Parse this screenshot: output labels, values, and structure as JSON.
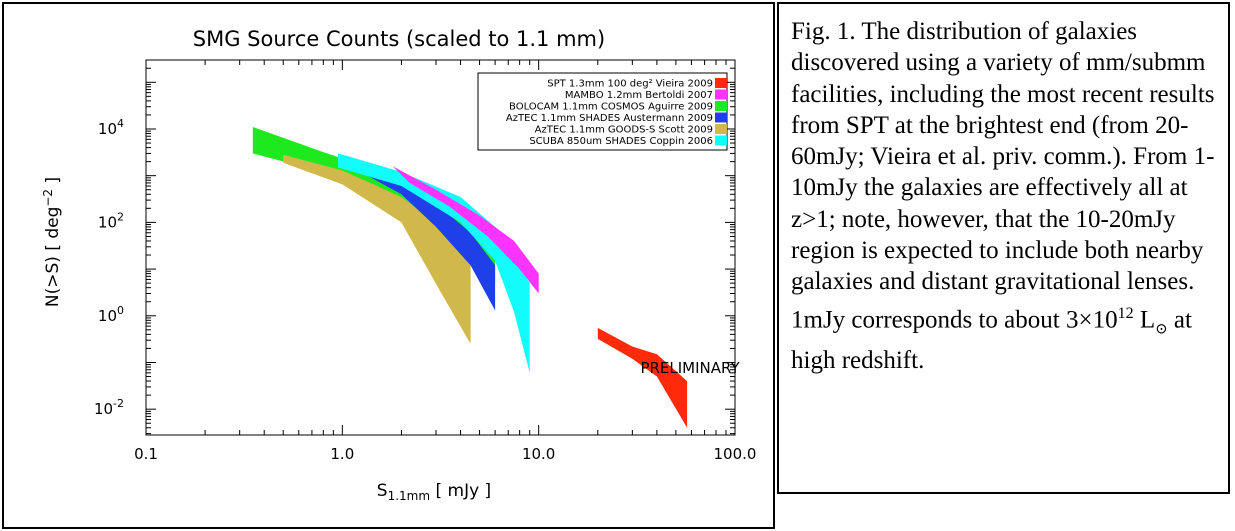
{
  "chart_data": {
    "type": "area",
    "title": "SMG Source Counts (scaled to 1.1 mm)",
    "xlabel_main": "S",
    "xlabel_sub": "1.1mm",
    "xlabel_rest": " [ mJy ]",
    "ylabel": "N(>S) [ deg",
    "ylabel_sup": "−2",
    "ylabel_end": " ]",
    "x_scale": "log",
    "y_scale": "log",
    "xlim": [
      0.1,
      100
    ],
    "ylim": [
      0.0028,
      300000
    ],
    "x_ticks": [
      {
        "value": 0.1,
        "label": "0.1"
      },
      {
        "value": 1,
        "label": "1.0"
      },
      {
        "value": 10,
        "label": "10.0"
      },
      {
        "value": 100,
        "label": "100.0"
      }
    ],
    "y_ticks": [
      {
        "value": 10000,
        "base": "10",
        "exp": "4"
      },
      {
        "value": 100,
        "base": "10",
        "exp": "2"
      },
      {
        "value": 1,
        "base": "10",
        "exp": "0"
      },
      {
        "value": 0.01,
        "base": "10",
        "exp": "-2"
      }
    ],
    "legend_position": "top-right",
    "annotation": "PRELIMINARY",
    "annotation_pos": {
      "x": 33,
      "y": 0.06
    },
    "series": [
      {
        "name": "SPT 1.3mm 100 deg² Vieira 2009",
        "color": "#ff2a0a",
        "upper": [
          [
            20,
            0.55
          ],
          [
            30,
            0.22
          ],
          [
            40,
            0.15
          ],
          [
            57,
            0.04
          ]
        ],
        "lower": [
          [
            20,
            0.32
          ],
          [
            30,
            0.12
          ],
          [
            40,
            0.05
          ],
          [
            57,
            0.004
          ]
        ]
      },
      {
        "name": "MAMBO 1.2mm Bertoldi 2007",
        "color": "#ff33ff",
        "upper": [
          [
            1.8,
            1600
          ],
          [
            3,
            500
          ],
          [
            5,
            140
          ],
          [
            7.5,
            40
          ],
          [
            10,
            8
          ]
        ],
        "lower": [
          [
            2.2,
            700
          ],
          [
            3.5,
            220
          ],
          [
            5.5,
            50
          ],
          [
            8,
            10
          ],
          [
            10,
            3
          ]
        ]
      },
      {
        "name": "BOLOCAM 1.1mm COSMOS Aguirre 2009",
        "color": "#1ee81e",
        "upper": [
          [
            0.35,
            11000
          ],
          [
            0.8,
            3200
          ],
          [
            2,
            900
          ],
          [
            4,
            200
          ],
          [
            6,
            55
          ]
        ],
        "lower": [
          [
            0.35,
            3000
          ],
          [
            0.8,
            1200
          ],
          [
            1.8,
            350
          ],
          [
            4,
            25
          ],
          [
            6,
            5
          ]
        ]
      },
      {
        "name": "AzTEC 1.1mm SHADES Austermann 2009",
        "color": "#1f3fe8",
        "upper": [
          [
            1,
            2200
          ],
          [
            2,
            800
          ],
          [
            3,
            250
          ],
          [
            4.5,
            60
          ],
          [
            6,
            12
          ]
        ],
        "lower": [
          [
            1.2,
            1300
          ],
          [
            2,
            400
          ],
          [
            3,
            80
          ],
          [
            4.5,
            12
          ],
          [
            6,
            1.3
          ]
        ]
      },
      {
        "name": "AzTEC 1.1mm GOODS-S Scott 2009",
        "color": "#d0b84a",
        "upper": [
          [
            0.5,
            2800
          ],
          [
            1,
            1300
          ],
          [
            2,
            350
          ],
          [
            3.2,
            80
          ],
          [
            4.5,
            12
          ]
        ],
        "lower": [
          [
            0.5,
            1900
          ],
          [
            1,
            650
          ],
          [
            2,
            100
          ],
          [
            3.2,
            3
          ],
          [
            4.5,
            0.25
          ]
        ]
      },
      {
        "name": "SCUBA 850um SHADES Coppin 2006",
        "color": "#12fcfc",
        "upper": [
          [
            0.95,
            3000
          ],
          [
            2,
            1200
          ],
          [
            4,
            350
          ],
          [
            6,
            80
          ],
          [
            9,
            5
          ]
        ],
        "lower": [
          [
            0.95,
            1500
          ],
          [
            2,
            600
          ],
          [
            4,
            100
          ],
          [
            6,
            15
          ],
          [
            7.5,
            1.2
          ],
          [
            9,
            0.06
          ]
        ]
      }
    ]
  },
  "caption": "Fig. 1. The distribution of galaxies discovered using a variety of mm/submm facilities, including the most recent results from SPT at the brightest end (from 20-60mJy; Vieira et al. priv. comm.). From 1-10mJy the galaxies are effectively all at z>1; note, however, that the 10-20mJy region is expected to include both nearby galaxies and distant gravitational lenses. 1mJy corresponds to about 3×10",
  "caption_sup": "12",
  "caption_tail": " L",
  "caption_symbol": "⊙",
  "caption_end": " at high redshift."
}
